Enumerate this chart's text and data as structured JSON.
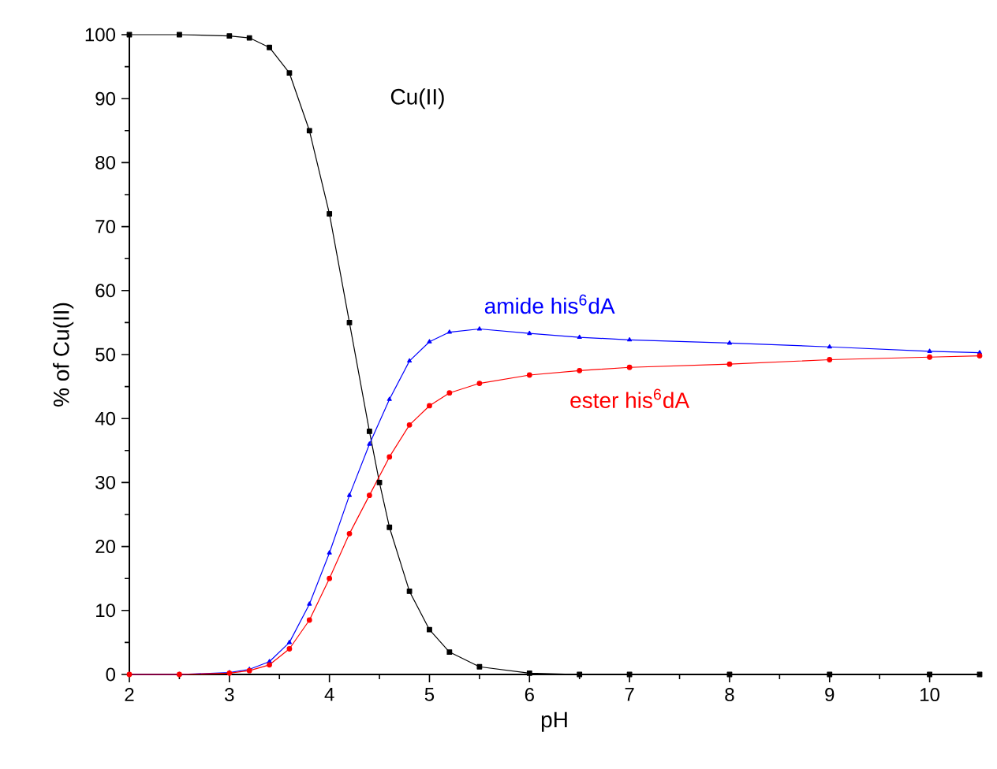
{
  "chart_data": {
    "type": "line",
    "xlabel": "pH",
    "ylabel": "% of Cu(II)",
    "xlim": [
      2,
      10.5
    ],
    "ylim": [
      0,
      100
    ],
    "xticks": [
      2,
      3,
      4,
      5,
      6,
      7,
      8,
      9,
      10
    ],
    "yticks": [
      0,
      10,
      20,
      30,
      40,
      50,
      60,
      70,
      80,
      90,
      100
    ],
    "grid": false,
    "line_style": "solid",
    "series": [
      {
        "name": "Cu(II)",
        "color": "#000000",
        "marker": "square",
        "x": [
          2,
          2.5,
          3,
          3.2,
          3.4,
          3.6,
          3.8,
          4.0,
          4.2,
          4.4,
          4.5,
          4.6,
          4.8,
          5.0,
          5.2,
          5.5,
          6,
          6.5,
          7,
          8,
          9,
          10,
          10.5
        ],
        "values": [
          100,
          100,
          99.8,
          99.5,
          98,
          94,
          85,
          72,
          55,
          38,
          30,
          23,
          13,
          7,
          3.5,
          1.2,
          0.2,
          0,
          0,
          0,
          0,
          0,
          0
        ]
      },
      {
        "name": "amide his$^{6}$dA",
        "color": "#0000ff",
        "marker": "triangle",
        "x": [
          2,
          2.5,
          3,
          3.2,
          3.4,
          3.6,
          3.8,
          4.0,
          4.2,
          4.4,
          4.6,
          4.8,
          5.0,
          5.2,
          5.5,
          6,
          6.5,
          7,
          8,
          9,
          10,
          10.5
        ],
        "values": [
          0,
          0,
          0.3,
          0.8,
          2,
          5,
          11,
          19,
          28,
          36,
          43,
          49,
          52,
          53.5,
          54,
          53.3,
          52.7,
          52.3,
          51.8,
          51.2,
          50.5,
          50.3
        ]
      },
      {
        "name": "ester his$^{6}$dA",
        "color": "#ff0000",
        "marker": "circle",
        "x": [
          2,
          2.5,
          3,
          3.2,
          3.4,
          3.6,
          3.8,
          4.0,
          4.2,
          4.4,
          4.6,
          4.8,
          5.0,
          5.2,
          5.5,
          6,
          6.5,
          7,
          8,
          9,
          10,
          10.5
        ],
        "values": [
          0,
          0,
          0.2,
          0.6,
          1.5,
          4,
          8.5,
          15,
          22,
          28,
          34,
          39,
          42,
          44,
          45.5,
          46.8,
          47.5,
          48,
          48.5,
          49.2,
          49.6,
          49.8
        ]
      }
    ]
  }
}
